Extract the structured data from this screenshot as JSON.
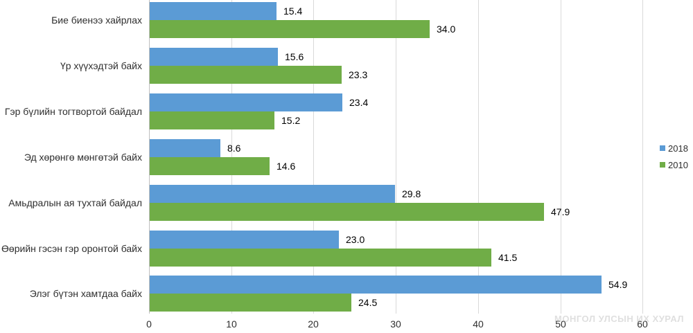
{
  "chart_data": {
    "type": "bar",
    "orientation": "horizontal",
    "title": "",
    "categories": [
      "Бие биенээ хайрлах",
      "Үр хүүхэдтэй байх",
      "Гэр бүлийн тогтвортой байдал",
      "Эд хөрөнгө мөнгөтэй байх",
      "Амьдралын ая тухтай байдал",
      "Өөрийн гэсэн гэр оронтой байх",
      "Элэг бүтэн хамтдаа байх"
    ],
    "series": [
      {
        "name": "2018",
        "color": "#5b9bd5",
        "values": [
          15.4,
          15.6,
          23.4,
          8.6,
          29.8,
          23.0,
          54.9
        ]
      },
      {
        "name": "2010",
        "color": "#70ad47",
        "values": [
          34.0,
          23.3,
          15.2,
          14.6,
          47.9,
          41.5,
          24.5
        ]
      }
    ],
    "xlim": [
      0,
      60
    ],
    "x_ticks": [
      0,
      10,
      20,
      30,
      40,
      50,
      60
    ],
    "grid": true,
    "data_labels": true,
    "legend_position": "right"
  },
  "watermark": "МОНГОЛ УЛСЫН ИХ ХУРАЛ",
  "colors": {
    "series_2018": "#5b9bd5",
    "series_2010": "#70ad47",
    "gridline": "#d9d9d9",
    "axis_line": "#bfbfbf",
    "text": "#2e2e2e"
  }
}
